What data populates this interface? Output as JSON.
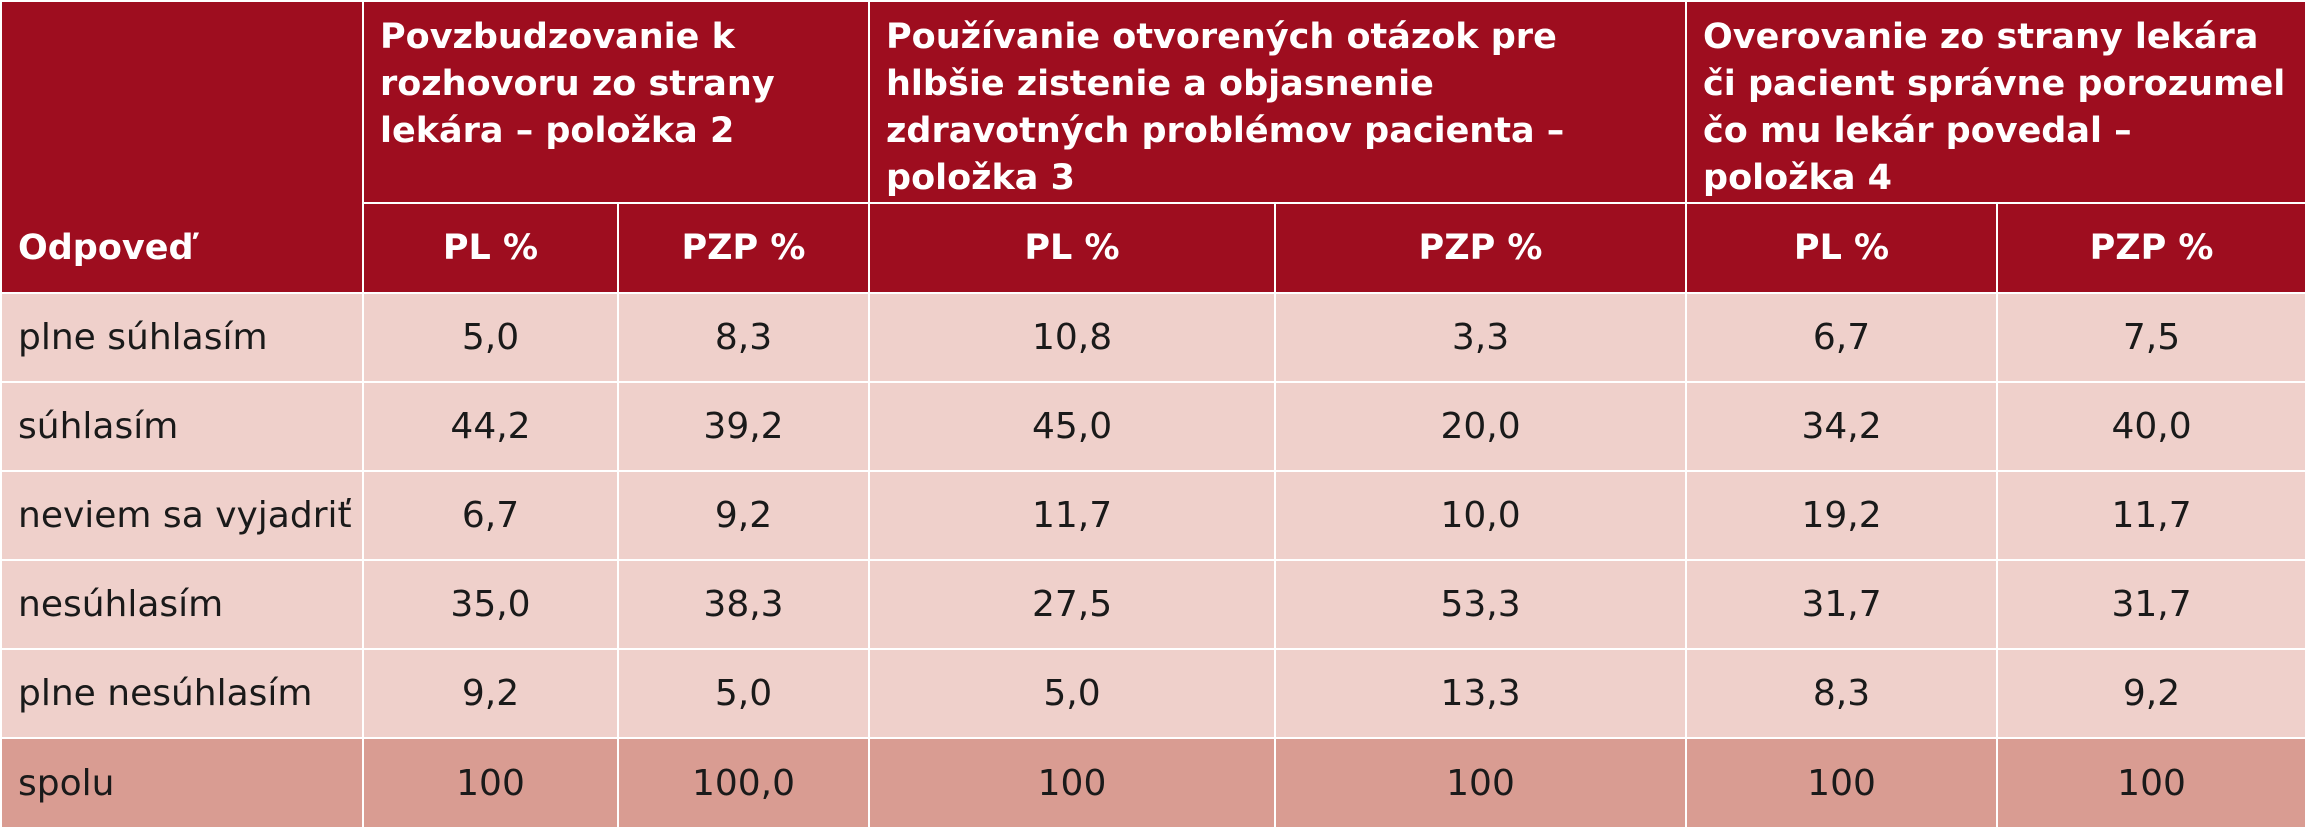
{
  "table": {
    "corner_label": "Odpoveď",
    "groups": [
      "Povzbudzovanie k rozhovoru zo strany lekára – položka 2",
      "Používanie otvorených otázok pre hlbšie zistenie a objasnenie zdravotných problémov pacienta – položka 3",
      "Overovanie zo strany lekára či pacient správne porozumel čo mu lekár povedal – položka 4"
    ],
    "subheaders": [
      "PL %",
      "PZP %",
      "PL %",
      "PZP %",
      "PL %",
      "PZP %"
    ],
    "rows": [
      {
        "label": "plne súhlasím",
        "values": [
          "5,0",
          "8,3",
          "10,8",
          "3,3",
          "6,7",
          "7,5"
        ]
      },
      {
        "label": "súhlasím",
        "values": [
          "44,2",
          "39,2",
          "45,0",
          "20,0",
          "34,2",
          "40,0"
        ]
      },
      {
        "label": "neviem sa vyjadriť",
        "values": [
          "6,7",
          "9,2",
          "11,7",
          "10,0",
          "19,2",
          "11,7"
        ]
      },
      {
        "label": "nesúhlasím",
        "values": [
          "35,0",
          "38,3",
          "27,5",
          "53,3",
          "31,7",
          "31,7"
        ]
      },
      {
        "label": "plne nesúhlasím",
        "values": [
          "9,2",
          "5,0",
          "5,0",
          "13,3",
          "8,3",
          "9,2"
        ]
      },
      {
        "label": "spolu",
        "values": [
          "100",
          "100,0",
          "100",
          "100",
          "100",
          "100"
        ]
      }
    ]
  },
  "colors": {
    "header_bg": "#9e0d1f",
    "row_bg": "#efd0cb",
    "total_row_bg": "#d99c92"
  }
}
